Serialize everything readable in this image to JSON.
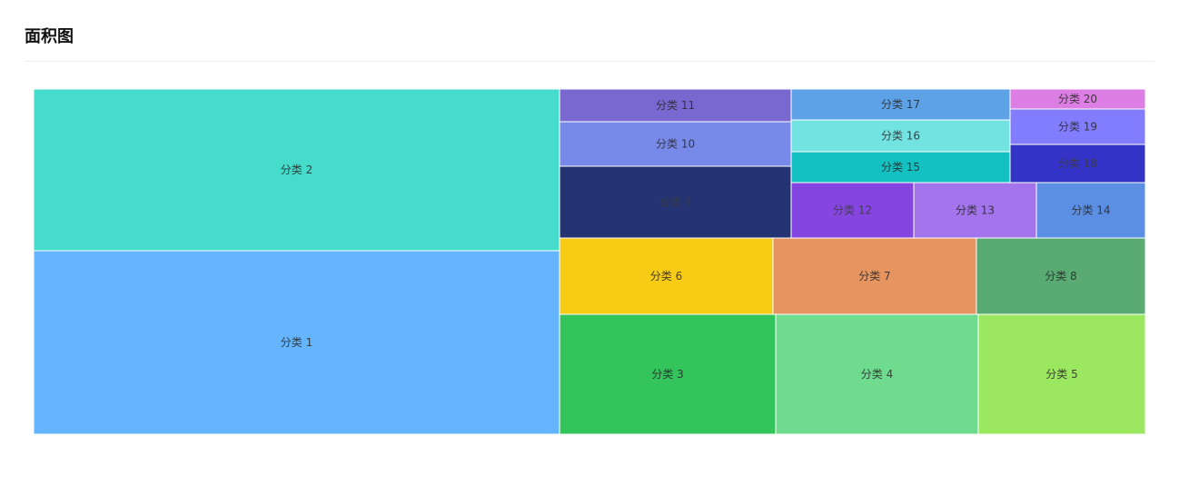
{
  "header": {
    "title": "面积图"
  },
  "chart_data": {
    "type": "treemap",
    "title": "",
    "colors": {
      "1": "#64b5fd",
      "2": "#45dccb",
      "3": "#33c45c",
      "4": "#6fdb8f",
      "5": "#9be75f",
      "6": "#f8cb14",
      "7": "#e69560",
      "8": "#59aa73",
      "9": "#233374",
      "10": "#778ae9",
      "11": "#7a68d1",
      "12": "#8545e1",
      "13": "#a374ec",
      "14": "#5b8fe3",
      "15": "#13c0c2",
      "16": "#73e3e1",
      "17": "#5da2e7",
      "18": "#3433c8",
      "19": "#827cff",
      "20": "#dd7ee4"
    },
    "items": [
      {
        "name": "分类 1",
        "value": 116
      },
      {
        "name": "分类 2",
        "value": 103
      },
      {
        "name": "分类 3",
        "value": 31
      },
      {
        "name": "分类 4",
        "value": 29
      },
      {
        "name": "分类 5",
        "value": 24
      },
      {
        "name": "分类 6",
        "value": 20
      },
      {
        "name": "分类 7",
        "value": 19
      },
      {
        "name": "分类 8",
        "value": 16
      },
      {
        "name": "分类 9",
        "value": 15
      },
      {
        "name": "分类 10",
        "value": 11
      },
      {
        "name": "分类 11",
        "value": 8
      },
      {
        "name": "分类 12",
        "value": 8
      },
      {
        "name": "分类 13",
        "value": 8
      },
      {
        "name": "分类 14",
        "value": 7
      },
      {
        "name": "分类 15",
        "value": 7
      },
      {
        "name": "分类 16",
        "value": 7
      },
      {
        "name": "分类 17",
        "value": 7
      },
      {
        "name": "分类 18",
        "value": 6
      },
      {
        "name": "分类 19",
        "value": 6
      },
      {
        "name": "分类 20",
        "value": 3
      }
    ]
  }
}
